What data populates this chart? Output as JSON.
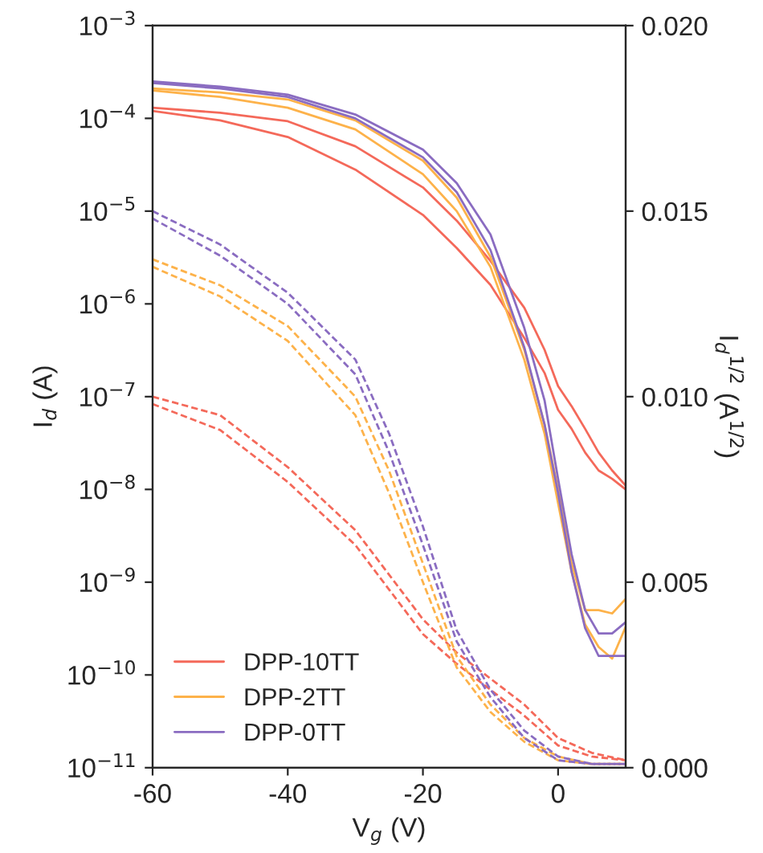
{
  "chart_data": {
    "type": "line",
    "xlabel": "V$_{g}$ (V)",
    "ylabel": "I$_{d}$ (A)",
    "y2label": "I$_{d}$$^{1/2}$ (A$^{1/2}$)",
    "x": [
      -60,
      -50,
      -40,
      -30,
      -20,
      -15,
      -10,
      -5,
      -2,
      0,
      2,
      4,
      6,
      8,
      10
    ],
    "xlim": [
      -60,
      10
    ],
    "xticks": [
      -60,
      -40,
      -20,
      0
    ],
    "log": "y",
    "ylim": [
      1e-11,
      0.001
    ],
    "yticks": [
      {
        "value": 0.001,
        "label": "10$^{−3}$"
      },
      {
        "value": 0.0001,
        "label": "10$^{−4}$"
      },
      {
        "value": 1e-05,
        "label": "10$^{−5}$"
      },
      {
        "value": 1e-06,
        "label": "10$^{−6}$"
      },
      {
        "value": 1e-07,
        "label": "10$^{−7}$"
      },
      {
        "value": 1e-08,
        "label": "10$^{−8}$"
      },
      {
        "value": 1e-09,
        "label": "10$^{−9}$"
      },
      {
        "value": 1e-10,
        "label": "10$^{−10}$"
      },
      {
        "value": 1e-11,
        "label": "10$^{−11}$"
      }
    ],
    "y2lim": [
      0,
      0.02
    ],
    "y2ticks": [
      {
        "value": 0,
        "label": "0.000"
      },
      {
        "value": 0.005,
        "label": "0.005"
      },
      {
        "value": 0.01,
        "label": "0.010"
      },
      {
        "value": 0.015,
        "label": "0.015"
      },
      {
        "value": 0.02,
        "label": "0.020"
      }
    ],
    "grid": false,
    "legend": "bottom left",
    "marker": "none",
    "series": [
      {
        "name": "DPP-10TT",
        "color": "#f4695a",
        "line_style": "solid",
        "values": [
          0.00013,
          0.000115,
          9.3e-05,
          5e-05,
          1.8e-05,
          7.9e-06,
          2.9e-06,
          9.1e-07,
          3.2e-07,
          1.3e-07,
          7.9e-08,
          4.5e-08,
          2.5e-08,
          1.6e-08,
          1.1e-08
        ]
      },
      {
        "color": "#f4695a",
        "line_style": "solid",
        "values": [
          0.00012,
          9.5e-05,
          6.3e-05,
          2.8e-05,
          9.1e-06,
          4e-06,
          1.6e-06,
          4.3e-07,
          1.8e-07,
          7.2e-08,
          4.5e-08,
          2.5e-08,
          1.6e-08,
          1.3e-08,
          1e-08
        ]
      },
      {
        "name": "DPP-2TT",
        "color": "#fdb24a",
        "line_style": "solid",
        "values": [
          0.00021,
          0.00019,
          0.00016,
          9.5e-05,
          3.5e-05,
          1.4e-05,
          3.2e-06,
          3.2e-07,
          5e-08,
          1e-08,
          1.6e-09,
          5e-10,
          5e-10,
          4.6e-10,
          6.6e-10
        ]
      },
      {
        "color": "#fdb24a",
        "line_style": "solid",
        "values": [
          0.0002,
          0.00017,
          0.00013,
          7.6e-05,
          2.5e-05,
          1e-05,
          2.5e-06,
          2.5e-07,
          4e-08,
          7.1e-09,
          1.3e-09,
          3.5e-10,
          2e-10,
          1.5e-10,
          3.3e-10
        ]
      },
      {
        "name": "DPP-0TT",
        "color": "#8a6cc1",
        "line_style": "solid",
        "values": [
          0.00025,
          0.00022,
          0.00018,
          0.00011,
          4.6e-05,
          2e-05,
          5.6e-06,
          5.5e-07,
          9.1e-08,
          1.3e-08,
          2e-09,
          5e-10,
          2.8e-10,
          2.8e-10,
          3.7e-10
        ]
      },
      {
        "color": "#8a6cc1",
        "line_style": "solid",
        "values": [
          0.00024,
          0.00021,
          0.00017,
          0.0001,
          3.8e-05,
          1.6e-05,
          3.8e-06,
          3.4e-07,
          5e-08,
          9.1e-09,
          1.3e-09,
          3.2e-10,
          1.6e-10,
          1.6e-10,
          1.6e-10
        ]
      },
      {
        "color": "#f4695a",
        "line_style": "dashed",
        "axis": "y2",
        "x": [
          -60,
          -50,
          -40,
          -30,
          -25,
          -20,
          -15,
          -10,
          -5,
          0,
          5,
          10
        ],
        "values": [
          0.01,
          0.0095,
          0.0081,
          0.0064,
          0.0052,
          0.004,
          0.0031,
          0.0024,
          0.0017,
          0.0008,
          0.0004,
          0.0002
        ]
      },
      {
        "color": "#f4695a",
        "line_style": "dashed",
        "axis": "y2",
        "x": [
          -60,
          -50,
          -40,
          -30,
          -25,
          -20,
          -15,
          -10,
          -5,
          0,
          5,
          10
        ],
        "values": [
          0.0098,
          0.0091,
          0.0077,
          0.006,
          0.0048,
          0.0036,
          0.0028,
          0.0021,
          0.0014,
          0.0006,
          0.0003,
          0.0002
        ]
      },
      {
        "color": "#fdb24a",
        "line_style": "dashed",
        "axis": "y2",
        "x": [
          -60,
          -50,
          -40,
          -30,
          -25,
          -20,
          -15,
          -10,
          -5,
          0,
          5,
          10
        ],
        "values": [
          0.0137,
          0.013,
          0.0119,
          0.01,
          0.008,
          0.0055,
          0.003,
          0.0017,
          0.0008,
          0.0003,
          0.0001,
          0.0001
        ]
      },
      {
        "color": "#fdb24a",
        "line_style": "dashed",
        "axis": "y2",
        "x": [
          -60,
          -50,
          -40,
          -30,
          -25,
          -20,
          -15,
          -10,
          -5,
          0,
          5,
          10
        ],
        "values": [
          0.0135,
          0.0127,
          0.0115,
          0.0095,
          0.0074,
          0.005,
          0.0027,
          0.0015,
          0.0007,
          0.0002,
          0.0001,
          0.0001
        ]
      },
      {
        "color": "#8a6cc1",
        "line_style": "dashed",
        "axis": "y2",
        "x": [
          -60,
          -50,
          -40,
          -30,
          -25,
          -20,
          -15,
          -10,
          -5,
          0,
          5,
          10
        ],
        "values": [
          0.015,
          0.0141,
          0.0128,
          0.011,
          0.009,
          0.0065,
          0.0037,
          0.0021,
          0.001,
          0.0003,
          0.0001,
          0.0001
        ]
      },
      {
        "color": "#8a6cc1",
        "line_style": "dashed",
        "axis": "y2",
        "x": [
          -60,
          -50,
          -40,
          -30,
          -25,
          -20,
          -15,
          -10,
          -5,
          0,
          5,
          10
        ],
        "values": [
          0.0148,
          0.0138,
          0.0125,
          0.0106,
          0.0085,
          0.006,
          0.0034,
          0.0019,
          0.0008,
          0.0002,
          0.0001,
          0.0001
        ]
      }
    ]
  }
}
